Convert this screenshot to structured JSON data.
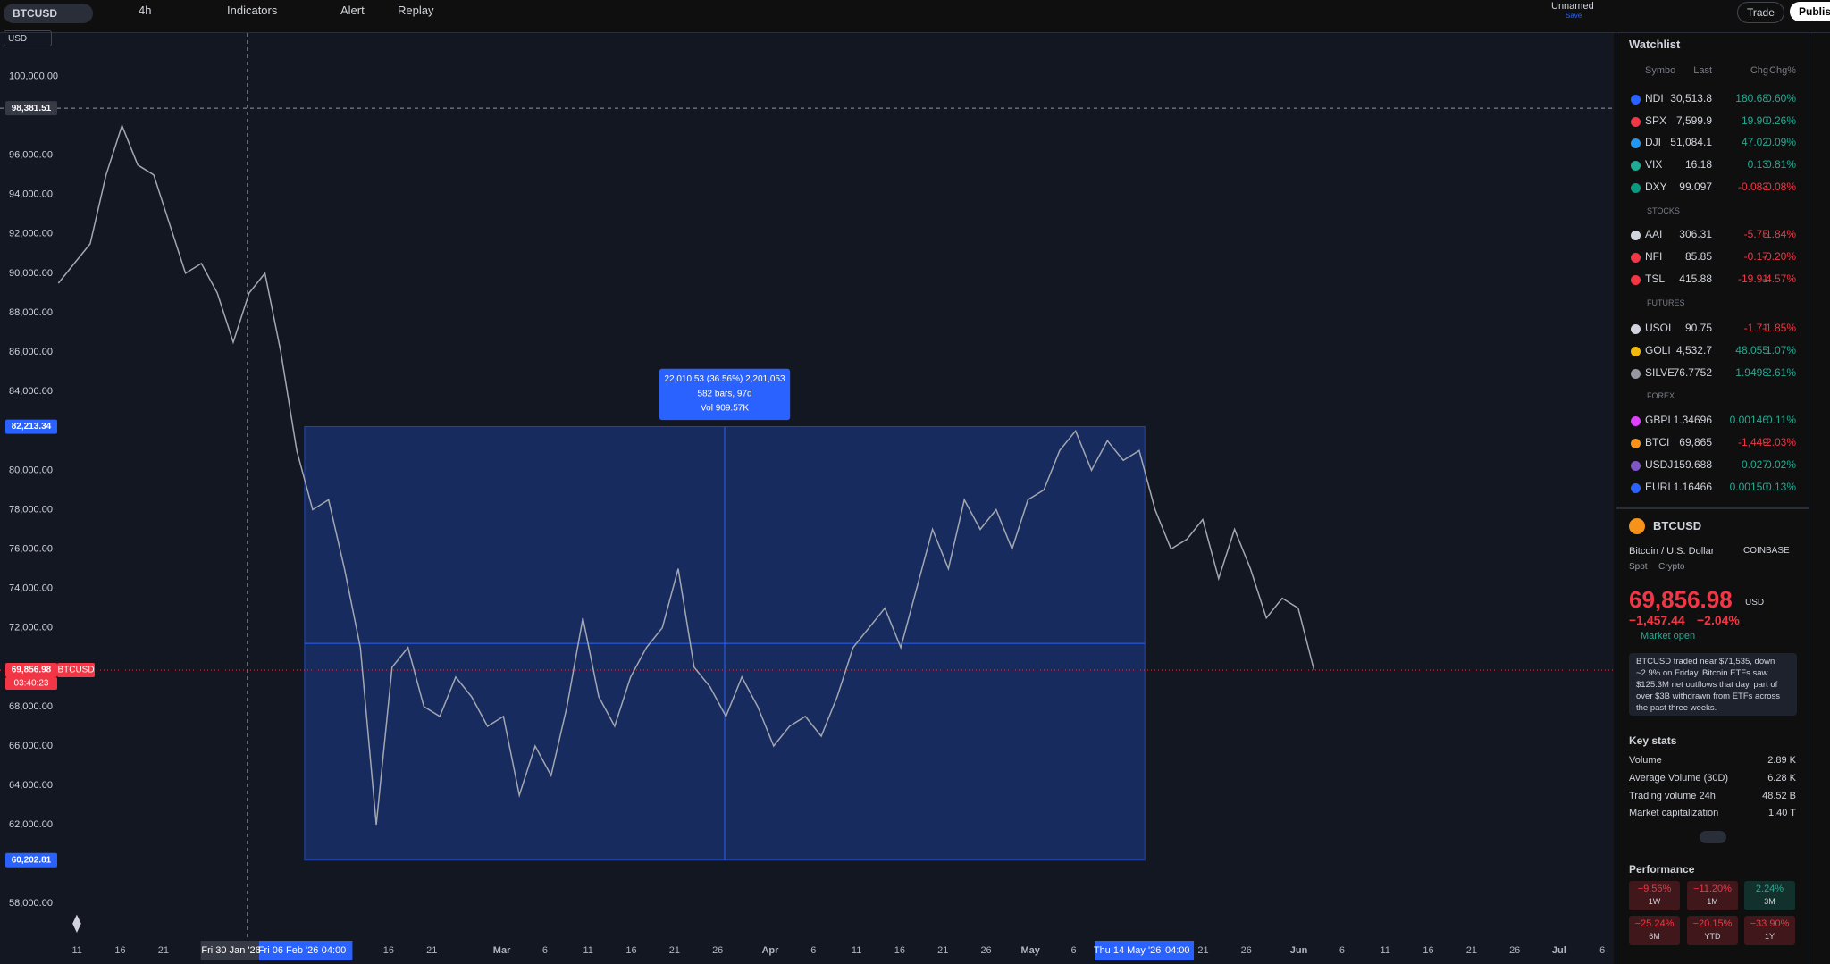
{
  "toolbar": {
    "symbol": "BTCUSD",
    "interval": "4h",
    "indicators": "Indicators",
    "alert": "Alert",
    "replay": "Replay",
    "layout_name": "Unnamed",
    "save": "Save",
    "trade": "Trade",
    "publish": "Publish"
  },
  "chart_data": {
    "type": "line",
    "currency": "USD",
    "symbol_tag": "BTCUSD",
    "color": "#a3a7b0",
    "values": [
      89500,
      90500,
      91500,
      95000,
      97500,
      95500,
      95000,
      92500,
      90000,
      90500,
      89000,
      86500,
      89000,
      90000,
      86000,
      81000,
      78000,
      78500,
      75000,
      71000,
      62000,
      70000,
      71000,
      68000,
      67500,
      69500,
      68500,
      67000,
      67500,
      63500,
      66000,
      64500,
      68000,
      72500,
      68500,
      67000,
      69500,
      71000,
      72000,
      75000,
      70000,
      69000,
      67500,
      69500,
      68000,
      66000,
      67000,
      67500,
      66500,
      68500,
      71000,
      72000,
      73000,
      71000,
      74000,
      77000,
      75000,
      78500,
      77000,
      78000,
      76000,
      78500,
      79000,
      81000,
      82000,
      80000,
      81500,
      80500,
      81000,
      78000,
      76000,
      76500,
      77500,
      74500,
      77000,
      75000,
      72500,
      73500,
      73000,
      69856.98
    ],
    "ylim": [
      56200,
      102200
    ],
    "yticks": [
      {
        "value": 58000,
        "label": "58,000.00"
      },
      {
        "value": 60000,
        "label": "60,000.00"
      },
      {
        "value": 62000,
        "label": "62,000.00"
      },
      {
        "value": 64000,
        "label": "64,000.00"
      },
      {
        "value": 66000,
        "label": "66,000.00"
      },
      {
        "value": 68000,
        "label": "68,000.00"
      },
      {
        "value": 70000,
        "label": "70,000.00"
      },
      {
        "value": 72000,
        "label": "72,000.00"
      },
      {
        "value": 74000,
        "label": "74,000.00"
      },
      {
        "value": 76000,
        "label": "76,000.00"
      },
      {
        "value": 78000,
        "label": "78,000.00"
      },
      {
        "value": 80000,
        "label": "80,000.00"
      },
      {
        "value": 84000,
        "label": "84,000.00"
      },
      {
        "value": 86000,
        "label": "86,000.00"
      },
      {
        "value": 88000,
        "label": "88,000.00"
      },
      {
        "value": 90000,
        "label": "90,000.00"
      },
      {
        "value": 92000,
        "label": "92,000.00"
      },
      {
        "value": 94000,
        "label": "94,000.00"
      },
      {
        "value": 96000,
        "label": "96,000.00"
      },
      {
        "value": 100000,
        "label": "100,000.00"
      }
    ],
    "crosshair": {
      "value": 98381.51,
      "label": "98,381.51"
    },
    "range_high": {
      "value": 82213.34,
      "label": "82,213.34"
    },
    "range_low": {
      "value": 60202.81,
      "label": "60,202.81"
    },
    "last_price": {
      "value": 69856.98,
      "label": "69,856.98"
    },
    "countdown": "03:40:23",
    "measure": [
      "22,010.53 (36.56%) 2,201,053",
      "582 bars, 97d",
      "Vol 909.57K"
    ],
    "time_labels": [
      "11",
      "16",
      "21",
      "Fri 30 Jan '26",
      "Fri 06 Feb '26",
      "04:00",
      "16",
      "21",
      "Mar",
      "6",
      "11",
      "16",
      "21",
      "26",
      "Apr",
      "6",
      "11",
      "16",
      "21",
      "26",
      "May",
      "6",
      "Thu 14 May '26",
      "04:00",
      "21",
      "26",
      "Jun",
      "6",
      "11",
      "16",
      "21",
      "26",
      "Jul",
      "6"
    ]
  },
  "watchlist": {
    "title": "Watchlist",
    "columns": [
      "Symbo",
      "Last",
      "Chg",
      "Chg%"
    ],
    "indices": [
      {
        "symbol": "NDI",
        "last": "30,513.8",
        "chg": "180.68",
        "chg_pct": "0.60%"
      },
      {
        "symbol": "SPX",
        "last": "7,599.9",
        "chg": "19.90",
        "chg_pct": "0.26%"
      },
      {
        "symbol": "DJI",
        "last": "51,084.1",
        "chg": "47.02",
        "chg_pct": "0.09%"
      },
      {
        "symbol": "VIX",
        "last": "16.18",
        "chg": "0.13",
        "chg_pct": "0.81%"
      },
      {
        "symbol": "DXY",
        "last": "99.097",
        "chg": "-0.083",
        "chg_pct": "-0.08%"
      }
    ],
    "sections": [
      {
        "name": "STOCKS",
        "rows": [
          {
            "symbol": "AAI",
            "last": "306.31",
            "chg": "-5.75",
            "chg_pct": "-1.84%"
          },
          {
            "symbol": "NFI",
            "last": "85.85",
            "chg": "-0.17",
            "chg_pct": "-0.20%"
          },
          {
            "symbol": "TSL",
            "last": "415.88",
            "chg": "-19.91",
            "chg_pct": "-4.57%"
          }
        ]
      },
      {
        "name": "FUTURES",
        "rows": [
          {
            "symbol": "USOI",
            "last": "90.75",
            "chg": "-1.71",
            "chg_pct": "-1.85%"
          },
          {
            "symbol": "GOLI",
            "last": "4,532.7",
            "chg": "48.055",
            "chg_pct": "1.07%"
          },
          {
            "symbol": "SILVE",
            "last": "76.7752",
            "chg": "1.9498",
            "chg_pct": "2.61%"
          }
        ]
      },
      {
        "name": "FOREX",
        "rows": [
          {
            "symbol": "GBPI",
            "last": "1.34696",
            "chg": "0.00146",
            "chg_pct": "0.11%"
          },
          {
            "symbol": "BTCI",
            "last": "69,865",
            "chg": "-1,449",
            "chg_pct": "-2.03%"
          },
          {
            "symbol": "USDJ",
            "last": "159.688",
            "chg": "0.027",
            "chg_pct": "0.02%"
          },
          {
            "symbol": "EURI",
            "last": "1.16466",
            "chg": "0.00150",
            "chg_pct": "0.13%"
          }
        ]
      }
    ]
  },
  "details": {
    "symbol": "BTCUSD",
    "name": "Bitcoin / U.S. Dollar",
    "exchange": "COINBASE",
    "kind": "Spot",
    "class": "Crypto",
    "price": "69,856.98",
    "currency": "USD",
    "change": "−1,457.44",
    "change_pct": "−2.04%",
    "status": "Market open",
    "news": "BTCUSD traded near $71,535, down ~2.9% on Friday. Bitcoin ETFs saw $125.3M net outflows that day, part of over $3B withdrawn from ETFs across the past three weeks.",
    "key_stats_title": "Key stats",
    "key_stats": [
      [
        "Volume",
        "2.89 K"
      ],
      [
        "Average Volume (30D)",
        "6.28 K"
      ],
      [
        "Trading volume 24h",
        "48.52 B"
      ],
      [
        "Market capitalization",
        "1.40 T"
      ]
    ],
    "performance_title": "Performance",
    "performance": [
      [
        "−9.56%",
        "1W"
      ],
      [
        "−11.20%",
        "1M"
      ],
      [
        "2.24%",
        "3M"
      ],
      [
        "−25.24%",
        "6M"
      ],
      [
        "−20.15%",
        "YTD"
      ],
      [
        "−33.90%",
        "1Y"
      ]
    ]
  }
}
